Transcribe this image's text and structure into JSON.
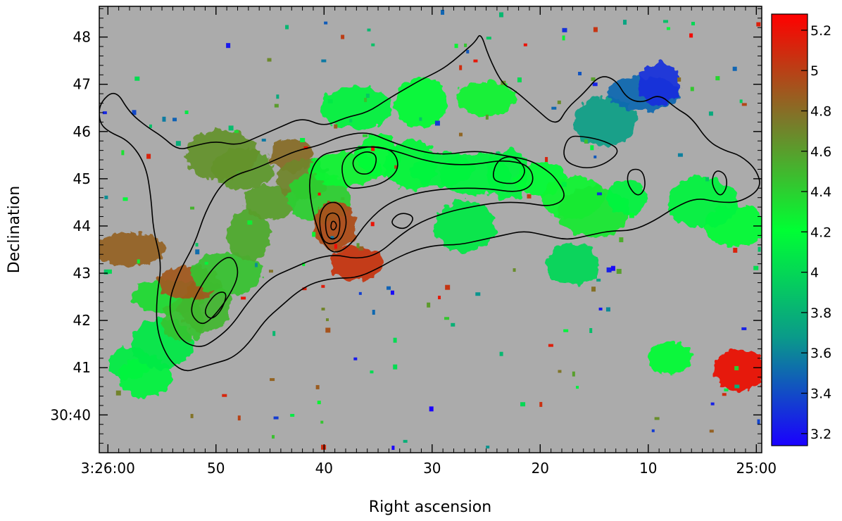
{
  "chart_data": {
    "type": "heatmap",
    "title": "",
    "xlabel": "Right ascension",
    "ylabel": "Declination",
    "x_axis": {
      "direction": "decreasing-right",
      "ticks": [
        {
          "value": 60,
          "label": "3:26:00"
        },
        {
          "value": 50,
          "label": "50"
        },
        {
          "value": 40,
          "label": "40"
        },
        {
          "value": 30,
          "label": "30"
        },
        {
          "value": 20,
          "label": "20"
        },
        {
          "value": 10,
          "label": "10"
        },
        {
          "value": 0,
          "label": "25:00"
        }
      ],
      "range": [
        60.8,
        -0.5
      ]
    },
    "y_axis": {
      "ticks": [
        {
          "value": 40,
          "label": "30:40"
        },
        {
          "value": 41,
          "label": "41"
        },
        {
          "value": 42,
          "label": "42"
        },
        {
          "value": 43,
          "label": "43"
        },
        {
          "value": 44,
          "label": "44"
        },
        {
          "value": 45,
          "label": "45"
        },
        {
          "value": 46,
          "label": "46"
        },
        {
          "value": 47,
          "label": "47"
        },
        {
          "value": 48,
          "label": "48"
        }
      ],
      "range": [
        39.2,
        48.65
      ]
    },
    "colorbar": {
      "range": [
        3.14,
        5.28
      ],
      "ticks": [
        3.2,
        3.4,
        3.6,
        3.8,
        4,
        4.2,
        4.4,
        4.6,
        4.8,
        5,
        5.2
      ],
      "tick_labels": [
        "3.2",
        "3.4",
        "3.6",
        "3.8",
        "4",
        "4.2",
        "4.4",
        "4.6",
        "4.8",
        "5",
        "5.2"
      ],
      "colors": [
        "#1a00ff",
        "#0a9a8a",
        "#00ff33",
        "#7a7a2a",
        "#ff0000"
      ]
    },
    "background_color": "#ababab",
    "grid": false,
    "regions": [
      {
        "ra": 58.0,
        "dec": 41.1,
        "value": 4.12
      },
      {
        "ra": 56.5,
        "dec": 40.8,
        "value": 4.15
      },
      {
        "ra": 55.0,
        "dec": 41.5,
        "value": 4.1
      },
      {
        "ra": 54.5,
        "dec": 42.5,
        "value": 4.35
      },
      {
        "ra": 53.0,
        "dec": 42.0,
        "value": 4.45
      },
      {
        "ra": 51.0,
        "dec": 42.3,
        "value": 4.5
      },
      {
        "ra": 52.5,
        "dec": 42.8,
        "value": 4.9
      },
      {
        "ra": 49.0,
        "dec": 43.0,
        "value": 4.45
      },
      {
        "ra": 47.0,
        "dec": 43.8,
        "value": 4.55
      },
      {
        "ra": 45.0,
        "dec": 44.5,
        "value": 4.6
      },
      {
        "ra": 47.5,
        "dec": 45.2,
        "value": 4.62
      },
      {
        "ra": 49.5,
        "dec": 45.5,
        "value": 4.65
      },
      {
        "ra": 43.0,
        "dec": 45.5,
        "value": 4.8
      },
      {
        "ra": 42.0,
        "dec": 45.0,
        "value": 4.7
      },
      {
        "ra": 40.5,
        "dec": 44.6,
        "value": 4.4
      },
      {
        "ra": 38.0,
        "dec": 45.2,
        "value": 4.25
      },
      {
        "ra": 35.0,
        "dec": 45.5,
        "value": 4.2
      },
      {
        "ra": 32.0,
        "dec": 45.3,
        "value": 4.18
      },
      {
        "ra": 29.0,
        "dec": 45.2,
        "value": 4.15
      },
      {
        "ra": 26.0,
        "dec": 45.1,
        "value": 4.15
      },
      {
        "ra": 23.0,
        "dec": 45.1,
        "value": 4.15
      },
      {
        "ra": 20.0,
        "dec": 45.0,
        "value": 4.2
      },
      {
        "ra": 17.0,
        "dec": 44.6,
        "value": 4.25
      },
      {
        "ra": 15.0,
        "dec": 44.3,
        "value": 4.3
      },
      {
        "ra": 12.0,
        "dec": 44.6,
        "value": 4.15
      },
      {
        "ra": 17.0,
        "dec": 43.2,
        "value": 4.0
      },
      {
        "ra": 14.0,
        "dec": 46.2,
        "value": 3.7
      },
      {
        "ra": 10.5,
        "dec": 46.8,
        "value": 3.5
      },
      {
        "ra": 9.0,
        "dec": 47.0,
        "value": 3.3
      },
      {
        "ra": 31.0,
        "dec": 46.6,
        "value": 4.2
      },
      {
        "ra": 25.0,
        "dec": 46.7,
        "value": 4.25
      },
      {
        "ra": 37.0,
        "dec": 46.5,
        "value": 4.15
      },
      {
        "ra": 39.0,
        "dec": 44.0,
        "value": 4.95
      },
      {
        "ra": 37.0,
        "dec": 43.2,
        "value": 5.05
      },
      {
        "ra": 2.0,
        "dec": 44.0,
        "value": 4.2
      },
      {
        "ra": 5.0,
        "dec": 44.5,
        "value": 4.15
      },
      {
        "ra": 8.0,
        "dec": 41.2,
        "value": 4.2
      },
      {
        "ra": 1.5,
        "dec": 40.95,
        "value": 5.2
      },
      {
        "ra": 27.0,
        "dec": 44.0,
        "value": 4.1
      },
      {
        "ra": 58.0,
        "dec": 43.5,
        "value": 4.85
      }
    ],
    "contours": [
      {
        "level": 1,
        "points": [
          [
            60.8,
            46.6
          ],
          [
            59.3,
            46.9
          ],
          [
            58.0,
            46.4
          ],
          [
            56.4,
            46.1
          ],
          [
            55.0,
            45.9
          ],
          [
            53.5,
            45.6
          ],
          [
            52.0,
            45.7
          ],
          [
            50.0,
            45.8
          ],
          [
            48.0,
            45.7
          ],
          [
            46.0,
            45.9
          ],
          [
            44.0,
            46.1
          ],
          [
            42.0,
            46.3
          ],
          [
            40.0,
            46.1
          ],
          [
            38.0,
            46.3
          ],
          [
            36.0,
            46.4
          ],
          [
            34.0,
            46.7
          ],
          [
            32.5,
            46.9
          ],
          [
            31.0,
            47.1
          ],
          [
            29.2,
            47.3
          ],
          [
            28.0,
            47.5
          ],
          [
            27.0,
            47.7
          ],
          [
            26.0,
            47.9
          ],
          [
            25.5,
            48.1
          ],
          [
            24.8,
            47.6
          ],
          [
            23.5,
            47.0
          ],
          [
            22.5,
            46.9
          ],
          [
            20.5,
            46.5
          ],
          [
            18.5,
            46.1
          ],
          [
            17.5,
            46.5
          ],
          [
            16.0,
            46.8
          ],
          [
            14.5,
            47.2
          ],
          [
            13.0,
            47.1
          ],
          [
            12.0,
            46.7
          ],
          [
            10.5,
            46.6
          ],
          [
            9.0,
            46.8
          ],
          [
            7.5,
            46.5
          ],
          [
            6.0,
            46.3
          ],
          [
            4.5,
            45.8
          ],
          [
            3.0,
            45.6
          ],
          [
            1.5,
            45.5
          ],
          [
            0.0,
            45.2
          ],
          [
            -0.5,
            44.8
          ],
          [
            1.5,
            44.5
          ],
          [
            3.5,
            44.5
          ],
          [
            5.5,
            44.6
          ],
          [
            7.5,
            44.4
          ],
          [
            9.5,
            44.1
          ],
          [
            11.5,
            43.9
          ],
          [
            13.5,
            43.9
          ],
          [
            15.5,
            43.8
          ],
          [
            17.5,
            43.7
          ],
          [
            19.5,
            43.8
          ],
          [
            21.5,
            43.9
          ],
          [
            23.5,
            43.8
          ],
          [
            25.5,
            43.7
          ],
          [
            27.5,
            43.6
          ],
          [
            29.5,
            43.6
          ],
          [
            31.5,
            43.5
          ],
          [
            33.5,
            43.3
          ],
          [
            35.0,
            43.1
          ],
          [
            37.0,
            42.9
          ],
          [
            39.0,
            42.9
          ],
          [
            41.0,
            42.8
          ],
          [
            42.5,
            42.6
          ],
          [
            44.0,
            42.3
          ],
          [
            45.5,
            42.0
          ],
          [
            47.0,
            41.5
          ],
          [
            48.5,
            41.2
          ],
          [
            50.0,
            41.1
          ],
          [
            51.5,
            41.0
          ],
          [
            53.0,
            40.9
          ],
          [
            54.5,
            41.2
          ],
          [
            55.5,
            41.8
          ],
          [
            55.5,
            42.5
          ],
          [
            55.0,
            43.2
          ],
          [
            55.8,
            43.9
          ],
          [
            56.0,
            44.6
          ],
          [
            56.5,
            45.3
          ],
          [
            58.0,
            45.8
          ],
          [
            60.0,
            46.0
          ],
          [
            60.8,
            46.2
          ]
        ]
      },
      {
        "level": 2,
        "points": [
          [
            53.5,
            41.6
          ],
          [
            54.5,
            42.3
          ],
          [
            53.5,
            43.0
          ],
          [
            52.0,
            43.6
          ],
          [
            51.0,
            44.3
          ],
          [
            49.5,
            44.9
          ],
          [
            48.0,
            45.1
          ],
          [
            46.5,
            45.2
          ],
          [
            44.5,
            45.4
          ],
          [
            42.5,
            45.6
          ],
          [
            40.5,
            45.7
          ],
          [
            38.5,
            45.9
          ],
          [
            36.0,
            46.0
          ],
          [
            34.0,
            45.8
          ],
          [
            31.5,
            45.6
          ],
          [
            29.0,
            45.5
          ],
          [
            26.0,
            45.6
          ],
          [
            23.5,
            45.5
          ],
          [
            21.0,
            45.4
          ],
          [
            19.5,
            45.2
          ],
          [
            18.5,
            45.0
          ],
          [
            17.5,
            44.6
          ],
          [
            19.0,
            44.4
          ],
          [
            21.5,
            44.5
          ],
          [
            24.0,
            44.5
          ],
          [
            26.5,
            44.4
          ],
          [
            28.5,
            44.3
          ],
          [
            31.0,
            44.1
          ],
          [
            33.0,
            43.8
          ],
          [
            35.0,
            43.4
          ],
          [
            37.0,
            43.3
          ],
          [
            39.0,
            43.4
          ],
          [
            41.0,
            43.3
          ],
          [
            43.0,
            43.1
          ],
          [
            45.0,
            42.9
          ],
          [
            47.0,
            42.4
          ],
          [
            48.5,
            41.9
          ],
          [
            50.0,
            41.6
          ],
          [
            51.5,
            41.4
          ]
        ]
      },
      {
        "level": 3,
        "points": [
          [
            40.0,
            43.6
          ],
          [
            41.0,
            44.2
          ],
          [
            41.5,
            45.0
          ],
          [
            40.5,
            45.5
          ],
          [
            38.5,
            45.6
          ],
          [
            36.0,
            45.7
          ],
          [
            33.5,
            45.6
          ],
          [
            31.0,
            45.4
          ],
          [
            28.5,
            45.3
          ],
          [
            26.0,
            45.3
          ],
          [
            23.5,
            45.4
          ],
          [
            21.0,
            45.3
          ],
          [
            20.5,
            44.9
          ],
          [
            22.0,
            44.7
          ],
          [
            25.0,
            44.8
          ],
          [
            28.5,
            44.8
          ],
          [
            31.5,
            44.7
          ],
          [
            34.0,
            44.5
          ],
          [
            36.0,
            44.1
          ],
          [
            37.5,
            43.6
          ],
          [
            39.0,
            43.4
          ]
        ]
      },
      {
        "level": 4,
        "points": [
          [
            38.0,
            44.8
          ],
          [
            38.5,
            45.3
          ],
          [
            37.5,
            45.6
          ],
          [
            35.5,
            45.7
          ],
          [
            33.5,
            45.6
          ],
          [
            33.0,
            45.2
          ],
          [
            34.5,
            44.9
          ],
          [
            36.5,
            44.8
          ]
        ]
      },
      {
        "level": 5,
        "points": [
          [
            37.0,
            45.1
          ],
          [
            37.5,
            45.4
          ],
          [
            36.2,
            45.6
          ],
          [
            35.0,
            45.5
          ],
          [
            35.5,
            45.1
          ]
        ]
      },
      {
        "level": 3,
        "points": [
          [
            24.5,
            45.0
          ],
          [
            24.0,
            45.4
          ],
          [
            22.5,
            45.5
          ],
          [
            21.2,
            45.2
          ],
          [
            22.0,
            44.9
          ],
          [
            23.5,
            44.9
          ]
        ]
      },
      {
        "level": 3,
        "points": [
          [
            40.2,
            43.7
          ],
          [
            40.5,
            44.2
          ],
          [
            39.8,
            44.5
          ],
          [
            38.5,
            44.5
          ],
          [
            37.8,
            44.1
          ],
          [
            38.4,
            43.7
          ],
          [
            39.4,
            43.6
          ]
        ]
      },
      {
        "level": 4,
        "points": [
          [
            39.8,
            43.8
          ],
          [
            39.9,
            44.2
          ],
          [
            39.2,
            44.3
          ],
          [
            38.5,
            44.2
          ],
          [
            38.6,
            43.8
          ],
          [
            39.2,
            43.7
          ]
        ]
      },
      {
        "level": 5,
        "points": [
          [
            39.4,
            43.95
          ],
          [
            39.3,
            44.1
          ],
          [
            39.0,
            44.1
          ],
          [
            38.8,
            44.0
          ],
          [
            39.1,
            43.9
          ]
        ]
      },
      {
        "level": 3,
        "points": [
          [
            51.5,
            41.9
          ],
          [
            52.5,
            42.2
          ],
          [
            51.5,
            42.7
          ],
          [
            50.0,
            43.2
          ],
          [
            48.5,
            43.4
          ],
          [
            47.8,
            43.0
          ],
          [
            48.8,
            42.5
          ],
          [
            50.5,
            42.0
          ]
        ]
      },
      {
        "level": 4,
        "points": [
          [
            50.5,
            42.0
          ],
          [
            51.2,
            42.2
          ],
          [
            50.0,
            42.6
          ],
          [
            48.9,
            42.6
          ],
          [
            49.5,
            42.2
          ]
        ]
      },
      {
        "level": 2,
        "points": [
          [
            18.0,
            45.4
          ],
          [
            17.5,
            45.9
          ],
          [
            16.0,
            45.9
          ],
          [
            14.0,
            45.8
          ],
          [
            12.5,
            45.6
          ],
          [
            14.0,
            45.3
          ],
          [
            16.0,
            45.2
          ]
        ]
      },
      {
        "level": 2,
        "points": [
          [
            12.0,
            44.9
          ],
          [
            11.8,
            45.2
          ],
          [
            10.5,
            45.2
          ],
          [
            10.2,
            44.8
          ],
          [
            11.0,
            44.6
          ]
        ]
      },
      {
        "level": 2,
        "points": [
          [
            4.2,
            44.9
          ],
          [
            3.8,
            45.2
          ],
          [
            2.8,
            45.1
          ],
          [
            2.7,
            44.8
          ],
          [
            3.4,
            44.6
          ]
        ]
      },
      {
        "level": 1,
        "points": [
          [
            34.0,
            44.05
          ],
          [
            33.0,
            44.3
          ],
          [
            31.5,
            44.2
          ],
          [
            32.5,
            43.9
          ]
        ]
      }
    ]
  }
}
